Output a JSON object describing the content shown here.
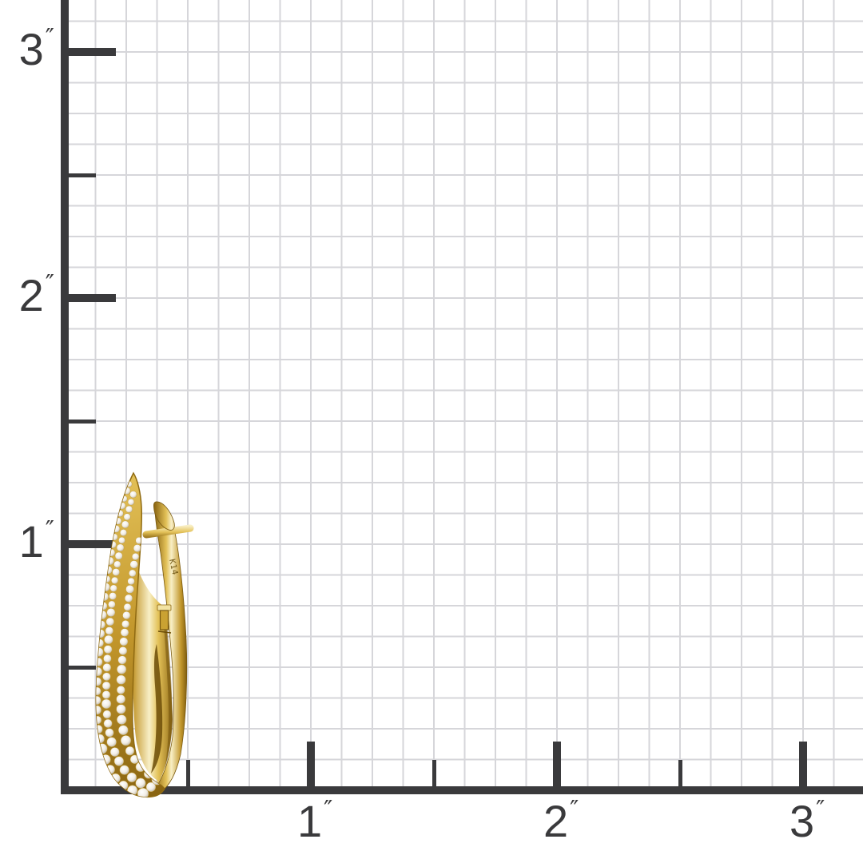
{
  "scene": {
    "alt": "Yellow gold pave diamond elongated oval hoop earring photographed against an inch measurement grid",
    "object_label": "pave-diamond-hoop-earring",
    "metal_stamp": "K14"
  },
  "ruler": {
    "unit_mark": "″",
    "left_axis_labels": [
      {
        "value": 3,
        "text": "3"
      },
      {
        "value": 2,
        "text": "2"
      },
      {
        "value": 1,
        "text": "1"
      }
    ],
    "bottom_axis_labels": [
      {
        "value": 1,
        "text": "1"
      },
      {
        "value": 2,
        "text": "2"
      },
      {
        "value": 3,
        "text": "3"
      }
    ],
    "half_tick_values": [
      0.5,
      1.5,
      2.5
    ]
  },
  "colors": {
    "background": "#ffffff",
    "axis": "#3a3a3c",
    "grid_line": "#d6d6da",
    "gold_light": "#f8efc6",
    "gold_mid": "#e3c158",
    "gold": "#c2962b",
    "gold_deep": "#8a6512",
    "gold_shadow": "#6b4c08",
    "diamond_white": "#ffffff",
    "diamond_mid": "#f1ede5",
    "diamond_edge": "#b3a996",
    "stamp_text": "#6e5410"
  }
}
